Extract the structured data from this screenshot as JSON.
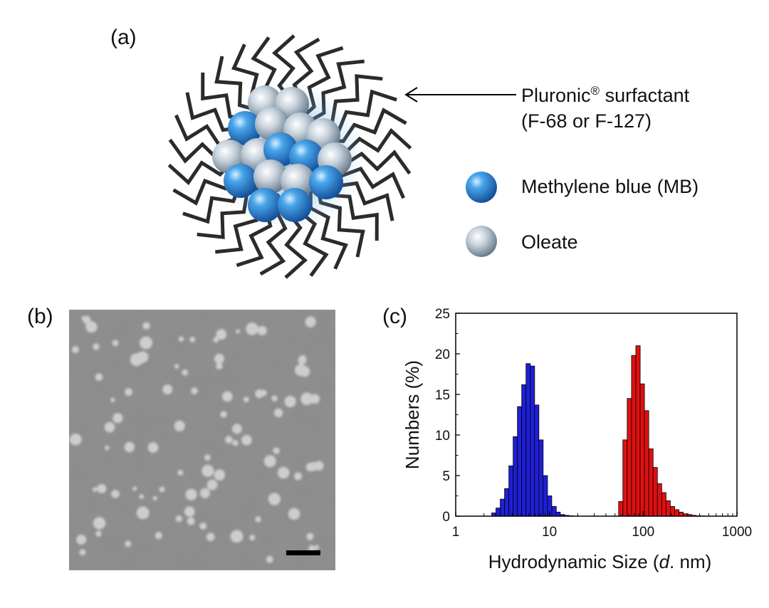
{
  "panels": {
    "a": {
      "label": "(a)",
      "surfactant_line1": "Pluronic",
      "surfactant_reg": "®",
      "surfactant_line1_rest": " surfactant",
      "surfactant_line2": "(F-68 or F-127)",
      "legend": [
        {
          "label": "Methylene blue (MB)",
          "color": "#2f86d6"
        },
        {
          "label": "Oleate",
          "color": "#a9b6c2"
        }
      ]
    },
    "b": {
      "label": "(b)"
    },
    "c": {
      "label": "(c)"
    }
  },
  "chart_data": {
    "type": "bar",
    "xlabel_pre": "Hydrodynamic Size (",
    "xlabel_italic": "d",
    "xlabel_post": ". nm)",
    "ylabel": "Numbers (%)",
    "x_scale": "log",
    "xlim": [
      1,
      1000
    ],
    "ylim": [
      0,
      25
    ],
    "x_ticks": [
      1,
      10,
      100,
      1000
    ],
    "x_tick_labels": [
      "1",
      "10",
      "100",
      "1000"
    ],
    "y_ticks": [
      0,
      5,
      10,
      15,
      20,
      25
    ],
    "y_tick_labels": [
      "0",
      "5",
      "10",
      "15",
      "20",
      "25"
    ],
    "series": [
      {
        "color": "#1f1fd6",
        "x": [
          2.55,
          2.83,
          3.15,
          3.5,
          3.89,
          4.32,
          4.8,
          5.33,
          5.93,
          6.59,
          7.32,
          8.13,
          9.04,
          10.04,
          11.2,
          12.4,
          13.8,
          15.3,
          17.0
        ],
        "values": [
          0.4,
          1.0,
          2.1,
          3.4,
          6.2,
          9.8,
          13.5,
          16.2,
          18.8,
          18.5,
          13.7,
          9.4,
          5.0,
          2.5,
          1.2,
          0.5,
          0.2,
          0.1,
          0.05
        ]
      },
      {
        "color": "#e01010",
        "x": [
          57.6,
          64.0,
          71.2,
          79.1,
          88.0,
          97.8,
          108.7,
          120.9,
          134.4,
          149.4,
          166.1,
          184.6,
          205.2,
          228.2,
          253.6,
          282.0,
          313.5,
          348.5,
          387.5,
          430.8
        ],
        "values": [
          1.8,
          9.4,
          14.5,
          19.8,
          21.0,
          16.3,
          13.0,
          8.3,
          6.0,
          4.0,
          2.9,
          1.9,
          1.2,
          0.8,
          0.5,
          0.3,
          0.2,
          0.1,
          0.05,
          0.03
        ]
      }
    ]
  }
}
